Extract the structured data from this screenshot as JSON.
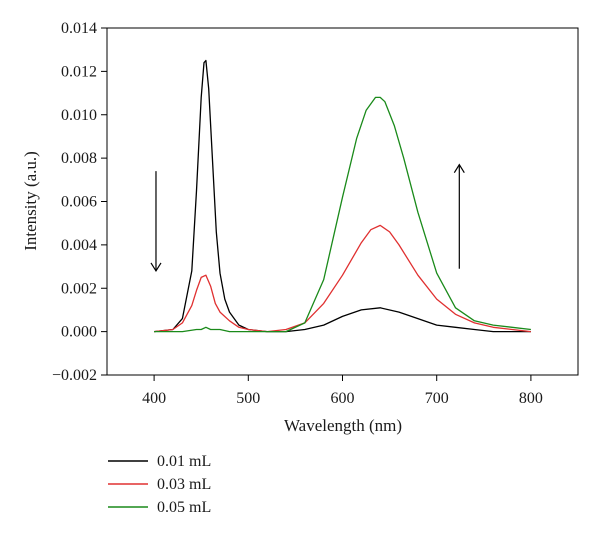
{
  "chart_data": {
    "type": "line",
    "xlabel": "Wavelength (nm)",
    "ylabel": "Intensity (a.u.)",
    "xlim": [
      350,
      850
    ],
    "ylim": [
      -0.002,
      0.014
    ],
    "xticks": [
      "400",
      "500",
      "600",
      "700",
      "800"
    ],
    "yticks": [
      "−0.002",
      "0.000",
      "0.002",
      "0.004",
      "0.006",
      "0.008",
      "0.010",
      "0.012",
      "0.014"
    ],
    "legend_position": "below plot, left",
    "grid": false,
    "arrows": [
      {
        "direction": "down",
        "x": 402,
        "y_from": 0.0074,
        "y_to": 0.0028
      },
      {
        "direction": "up",
        "x": 724,
        "y_from": 0.0029,
        "y_to": 0.0077
      }
    ],
    "series": [
      {
        "name": "0.01 mL",
        "color": "#000000",
        "x": [
          400,
          420,
          430,
          440,
          445,
          450,
          453,
          455,
          458,
          462,
          466,
          470,
          475,
          480,
          490,
          500,
          520,
          540,
          560,
          580,
          600,
          620,
          640,
          660,
          680,
          700,
          720,
          740,
          760,
          780,
          800
        ],
        "y": [
          0.0,
          0.0001,
          0.0006,
          0.0028,
          0.0065,
          0.0108,
          0.0124,
          0.0125,
          0.0112,
          0.0079,
          0.0046,
          0.0027,
          0.0015,
          0.0009,
          0.0003,
          0.0001,
          0.0,
          0.0,
          0.0001,
          0.0003,
          0.0007,
          0.001,
          0.0011,
          0.0009,
          0.0006,
          0.0003,
          0.0002,
          0.0001,
          0.0,
          0.0,
          0.0
        ]
      },
      {
        "name": "0.03 mL",
        "color": "#e03030",
        "x": [
          400,
          420,
          430,
          440,
          445,
          450,
          455,
          460,
          465,
          470,
          480,
          490,
          500,
          520,
          540,
          560,
          580,
          600,
          620,
          630,
          640,
          650,
          660,
          680,
          700,
          720,
          740,
          760,
          780,
          800
        ],
        "y": [
          0.0,
          0.0001,
          0.0004,
          0.0012,
          0.0019,
          0.0025,
          0.0026,
          0.0021,
          0.0013,
          0.0009,
          0.0005,
          0.0002,
          0.0001,
          0.0,
          0.0001,
          0.0004,
          0.0013,
          0.0026,
          0.0041,
          0.0047,
          0.0049,
          0.0046,
          0.004,
          0.0026,
          0.0015,
          0.0008,
          0.0004,
          0.0002,
          0.0001,
          0.0
        ]
      },
      {
        "name": "0.05 mL",
        "color": "#1a8a1a",
        "x": [
          400,
          430,
          445,
          450,
          455,
          460,
          470,
          480,
          500,
          520,
          540,
          560,
          580,
          600,
          615,
          625,
          635,
          640,
          645,
          655,
          665,
          680,
          700,
          720,
          740,
          760,
          780,
          800
        ],
        "y": [
          0.0,
          0.0,
          0.0001,
          0.0001,
          0.0002,
          0.0001,
          0.0001,
          0.0,
          0.0,
          0.0,
          0.0,
          0.0004,
          0.0024,
          0.0062,
          0.0089,
          0.0102,
          0.0108,
          0.0108,
          0.0106,
          0.0095,
          0.008,
          0.0055,
          0.0027,
          0.0011,
          0.0005,
          0.0003,
          0.0002,
          0.0001
        ]
      }
    ]
  }
}
